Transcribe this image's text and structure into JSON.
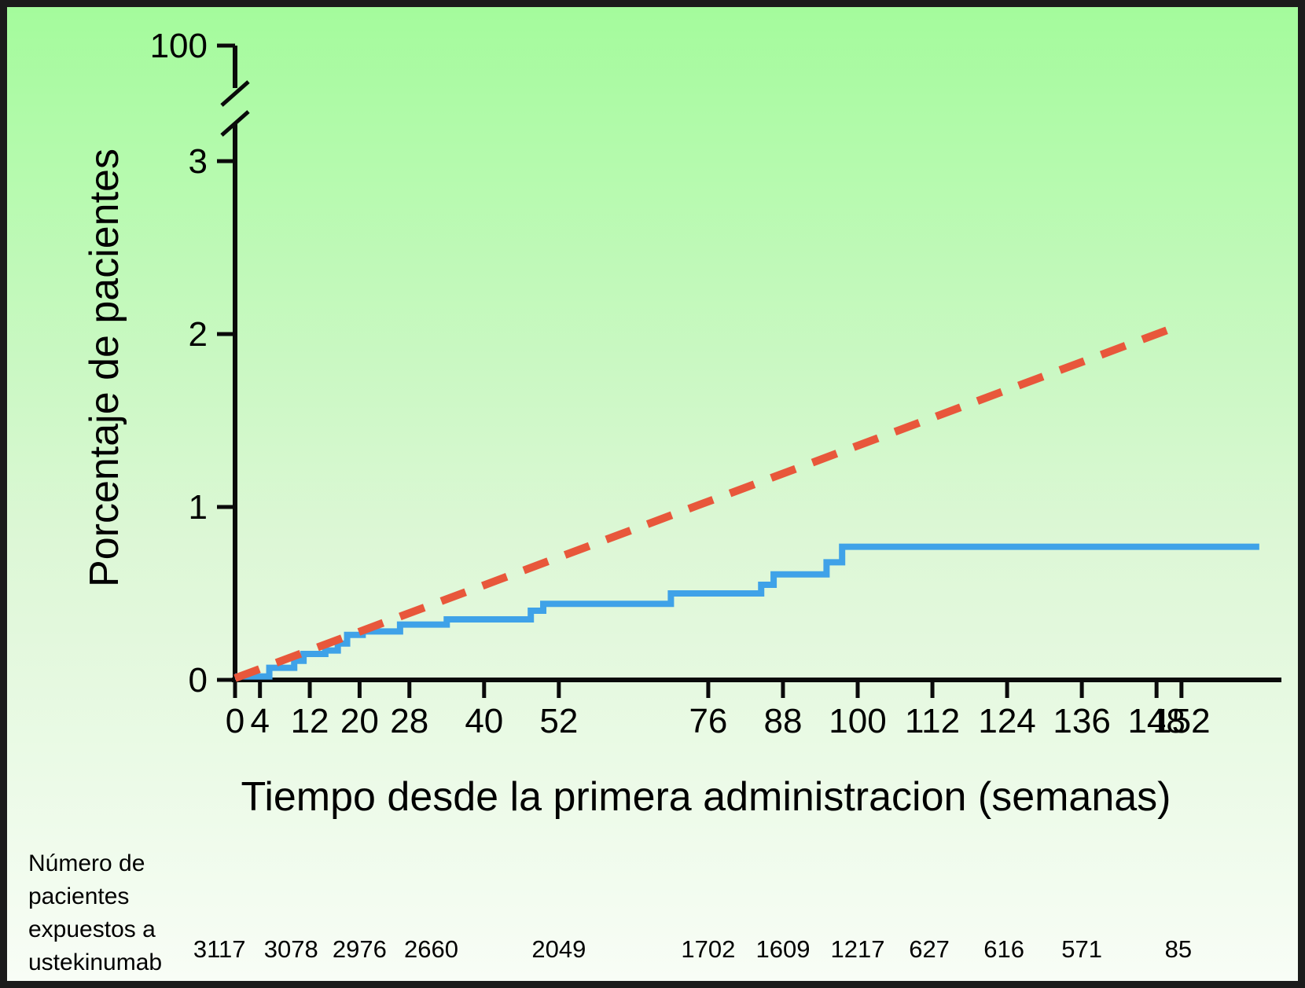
{
  "figure": {
    "border_color": "#1b1b1b",
    "background_top": "#a4fb9c",
    "background_mid": "#ddf7d6",
    "background_bottom": "#f8fdf6",
    "axis_color": "#0a0a0a",
    "text_color": "#000000"
  },
  "chart_data": {
    "type": "line",
    "title": "",
    "xlabel": "Tiempo desde la primera administracion (semanas)",
    "ylabel": "Porcentaje de pacientes",
    "x_ticks": [
      0,
      4,
      12,
      20,
      28,
      40,
      52,
      76,
      88,
      100,
      112,
      124,
      136,
      148,
      152
    ],
    "y_ticks": [
      0,
      1,
      2,
      3
    ],
    "y_axis_break_label": "100",
    "xlim": [
      0,
      168
    ],
    "ylim": [
      0,
      3.6
    ],
    "grid": false,
    "legend": "none",
    "series": [
      {
        "id": "blue_step",
        "style": "step",
        "color": "#3fa2e8",
        "points": [
          [
            0,
            0.02
          ],
          [
            5.5,
            0.07
          ],
          [
            9.5,
            0.11
          ],
          [
            11,
            0.15
          ],
          [
            14.5,
            0.17
          ],
          [
            16.5,
            0.21
          ],
          [
            18,
            0.26
          ],
          [
            20.5,
            0.28
          ],
          [
            26.5,
            0.32
          ],
          [
            34,
            0.35
          ],
          [
            47.5,
            0.4
          ],
          [
            49.5,
            0.44
          ],
          [
            70,
            0.5
          ],
          [
            84.5,
            0.55
          ],
          [
            86.5,
            0.61
          ],
          [
            95,
            0.68
          ],
          [
            97.5,
            0.77
          ],
          [
            164.5,
            0.77
          ]
        ]
      },
      {
        "id": "orange_dashed",
        "style": "dashed",
        "color": "#e8573b",
        "points": [
          [
            0,
            0.01
          ],
          [
            151,
            2.04
          ]
        ]
      }
    ],
    "at_risk": {
      "label_lines": [
        "Número de",
        "pacientes",
        "expuestos a",
        "ustekinumab"
      ],
      "values": [
        "3117",
        "3078",
        "2976",
        "2660",
        "2049",
        "1702",
        "1609",
        "1217",
        "627",
        "616",
        "571",
        "85"
      ],
      "week_positions": [
        -2.5,
        9,
        20,
        31.5,
        52,
        76,
        88,
        100,
        111.5,
        123.5,
        136,
        151.5
      ]
    }
  }
}
